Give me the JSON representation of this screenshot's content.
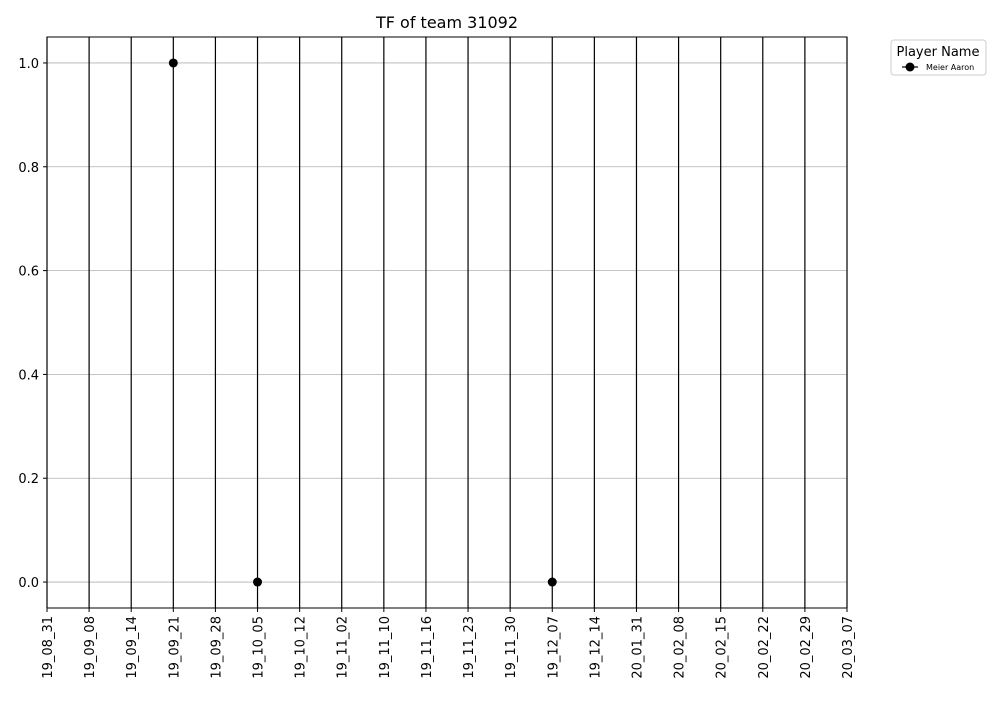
{
  "chart_data": {
    "type": "scatter",
    "title": "TF of team 31092",
    "xlabel": "",
    "ylabel": "",
    "categories": [
      "19_08_31",
      "19_09_08",
      "19_09_14",
      "19_09_21",
      "19_09_28",
      "19_10_05",
      "19_10_12",
      "19_11_02",
      "19_11_10",
      "19_11_16",
      "19_11_23",
      "19_11_30",
      "19_12_07",
      "19_12_14",
      "20_01_31",
      "20_02_08",
      "20_02_15",
      "20_02_22",
      "20_02_29",
      "20_03_07"
    ],
    "yticks": [
      "0.0",
      "0.2",
      "0.4",
      "0.6",
      "0.8",
      "1.0"
    ],
    "ylim": [
      -0.05,
      1.05
    ],
    "grid": {
      "horizontal": true,
      "vertical": true
    },
    "legend": {
      "title": "Player Name",
      "placement": "outside-top-right"
    },
    "series": [
      {
        "name": "Meier Aaron",
        "color": "#000000",
        "points": [
          {
            "x": "19_09_21",
            "y": 1.0
          },
          {
            "x": "19_10_05",
            "y": 0.0
          },
          {
            "x": "19_12_07",
            "y": 0.0
          }
        ]
      }
    ]
  }
}
